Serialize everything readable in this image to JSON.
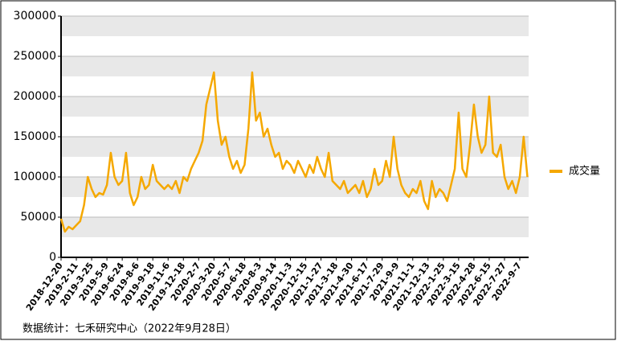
{
  "chart_data": {
    "type": "line",
    "categories": [
      "2018-12-20",
      null,
      null,
      null,
      "2019-2-11",
      null,
      null,
      null,
      "2019-3-25",
      null,
      null,
      null,
      "2019-5-9",
      null,
      null,
      null,
      "2019-6-24",
      null,
      null,
      null,
      "2019-8-6",
      null,
      null,
      null,
      "2019-9-18",
      null,
      null,
      null,
      "2019-11-6",
      null,
      null,
      null,
      "2019-12-18",
      null,
      null,
      null,
      "2020-2-7",
      null,
      null,
      null,
      "2020-3-20",
      null,
      null,
      null,
      "2020-5-7",
      null,
      null,
      null,
      "2020-6-18",
      null,
      null,
      null,
      "2020-8-3",
      null,
      null,
      null,
      "2020-9-14",
      null,
      null,
      null,
      "2020-11-3",
      null,
      null,
      null,
      "2020-12-15",
      null,
      null,
      null,
      "2021-1-27",
      null,
      null,
      null,
      "2021-3-18",
      null,
      null,
      null,
      "2021-4-30",
      null,
      null,
      null,
      "2021-6-17",
      null,
      null,
      null,
      "2021-7-29",
      null,
      null,
      null,
      "2021-9-9",
      null,
      null,
      null,
      "2021-11-1",
      null,
      null,
      null,
      "2021-12-13",
      null,
      null,
      null,
      "2022-1-25",
      null,
      null,
      null,
      "2022-3-15",
      null,
      null,
      null,
      "2022-4-28",
      null,
      null,
      null,
      "2022-6-15",
      null,
      null,
      null,
      "2022-7-27",
      null,
      null,
      null,
      "2022-9-7",
      null,
      null
    ],
    "series": [
      {
        "name": "成交量",
        "color": "#f5a800",
        "values": [
          48000,
          32000,
          38000,
          35000,
          40000,
          45000,
          65000,
          100000,
          85000,
          75000,
          80000,
          78000,
          90000,
          130000,
          100000,
          90000,
          95000,
          130000,
          80000,
          65000,
          75000,
          100000,
          85000,
          90000,
          115000,
          95000,
          90000,
          85000,
          90000,
          85000,
          95000,
          80000,
          100000,
          95000,
          110000,
          120000,
          130000,
          145000,
          190000,
          210000,
          230000,
          170000,
          140000,
          150000,
          125000,
          110000,
          120000,
          105000,
          115000,
          160000,
          230000,
          170000,
          180000,
          150000,
          160000,
          140000,
          125000,
          130000,
          110000,
          120000,
          115000,
          105000,
          120000,
          110000,
          100000,
          115000,
          105000,
          125000,
          110000,
          100000,
          130000,
          95000,
          90000,
          85000,
          95000,
          80000,
          85000,
          90000,
          80000,
          95000,
          75000,
          85000,
          110000,
          90000,
          95000,
          120000,
          100000,
          150000,
          110000,
          90000,
          80000,
          75000,
          85000,
          80000,
          95000,
          70000,
          60000,
          95000,
          75000,
          85000,
          80000,
          70000,
          90000,
          110000,
          180000,
          110000,
          100000,
          140000,
          190000,
          150000,
          130000,
          140000,
          200000,
          130000,
          125000,
          140000,
          100000,
          85000,
          95000,
          80000,
          100000,
          150000,
          100000
        ]
      }
    ],
    "ylim": [
      0,
      300000
    ],
    "yticks": [
      0,
      50000,
      100000,
      150000,
      200000,
      250000,
      300000
    ],
    "grid": true,
    "legend": "right",
    "note": "数据统计：七禾研究中心（2022年9月28日）"
  }
}
